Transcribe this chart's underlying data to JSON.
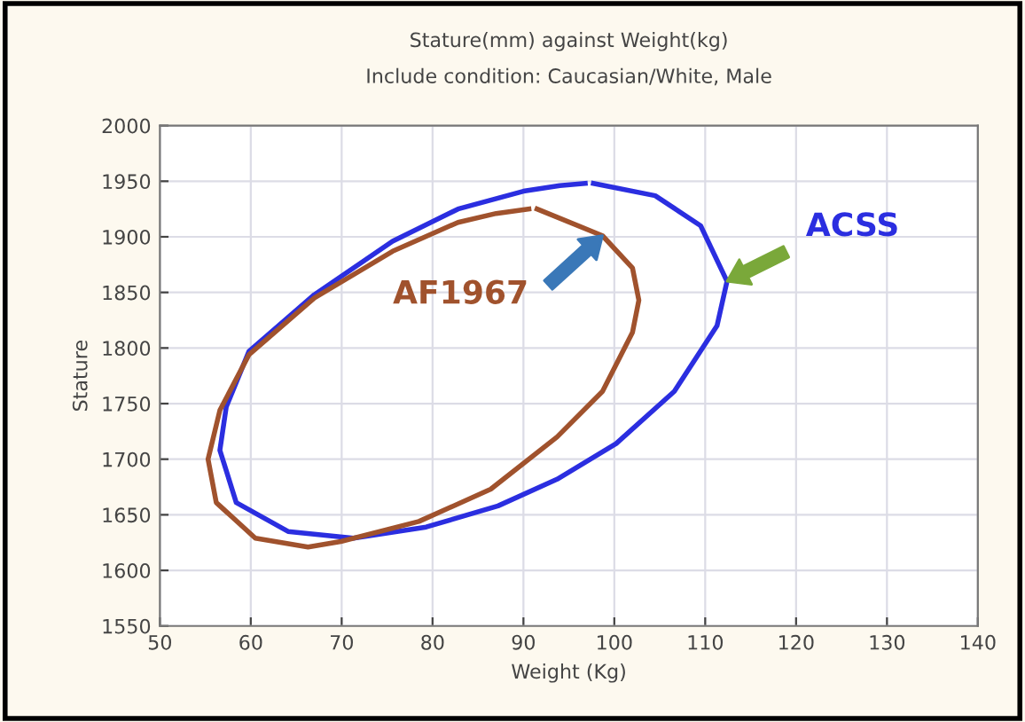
{
  "chart_data": {
    "type": "line",
    "title": "Stature(mm) against Weight(kg)",
    "subtitle": "Include condition: Caucasian/White, Male",
    "xlabel": "Weight (Kg)",
    "ylabel": "Stature",
    "xlim": [
      50,
      140
    ],
    "xticks": [
      50,
      60,
      70,
      80,
      90,
      100,
      110,
      120,
      130,
      140
    ],
    "ylim": [
      1550,
      2000
    ],
    "yticks": [
      1550,
      1600,
      1650,
      1700,
      1750,
      1800,
      1850,
      1900,
      1950,
      2000
    ],
    "grid": true,
    "marker": "none",
    "line_style": "solid",
    "series": [
      {
        "name": "ACSS",
        "color": "#2b2ee0",
        "x": [
          97.7,
          104.5,
          109.5,
          112.4,
          111.3,
          106.6,
          100.2,
          93.7,
          87.2,
          79.3,
          71.3,
          64.1,
          58.4,
          56.6,
          57.3,
          59.8,
          67,
          75.6,
          82.8,
          90,
          94,
          96.8
        ],
        "values": [
          1948,
          1937,
          1910,
          1860,
          1820,
          1761,
          1714,
          1682,
          1658,
          1639,
          1629,
          1635,
          1661,
          1708,
          1747,
          1797,
          1848,
          1896,
          1925,
          1941,
          1946,
          1948
        ]
      },
      {
        "name": "AF1967",
        "color": "#a0522d",
        "x": [
          91.5,
          98.7,
          102,
          102.7,
          102,
          98.7,
          93.7,
          86.4,
          78.5,
          69.9,
          66.3,
          60.5,
          56.2,
          55.3,
          56.6,
          59.8,
          67,
          75.6,
          82.8,
          87,
          90.6
        ],
        "values": [
          1925,
          1901,
          1872,
          1843,
          1814,
          1761,
          1720,
          1673,
          1644,
          1626,
          1621,
          1629,
          1661,
          1700,
          1744,
          1794,
          1845,
          1887,
          1913,
          1921,
          1925
        ]
      }
    ]
  }
}
